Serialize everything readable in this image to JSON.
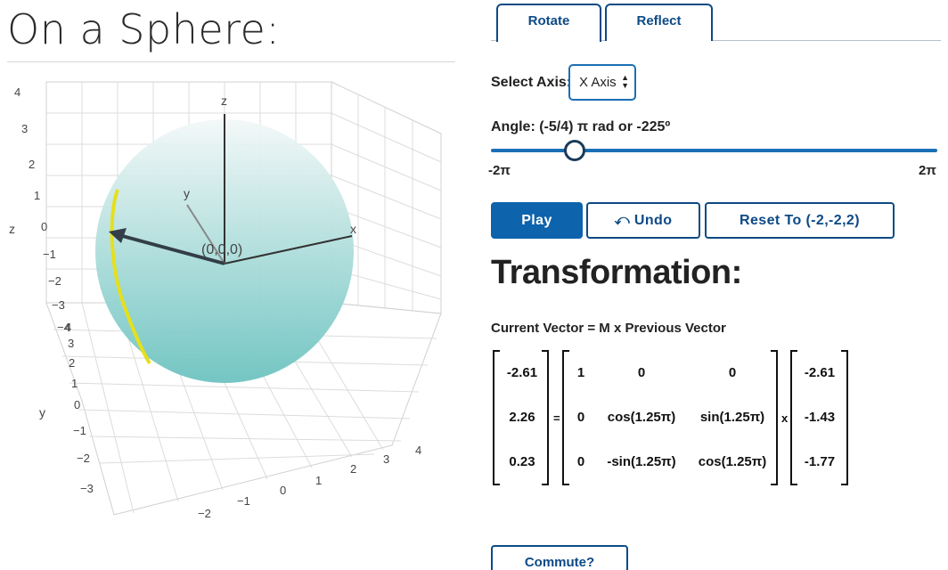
{
  "page": {
    "title": "On a Sphere:"
  },
  "plot": {
    "x_ticks": [
      "4",
      "3",
      "2",
      "1",
      "0",
      "−1",
      "−2"
    ],
    "y_ticks": [
      "4",
      "3",
      "2",
      "1",
      "0",
      "−1",
      "−2",
      "−3"
    ],
    "z_ticks": [
      "4",
      "3",
      "2",
      "1",
      "0",
      "−1",
      "−2",
      "−3",
      "−4"
    ],
    "axis_labels": {
      "x": "x",
      "y": "y",
      "z": "z"
    },
    "side_labels": {
      "z": "z",
      "y": "y"
    },
    "origin_label": "(0,0,0)",
    "colors": {
      "sphere": "#6cc3c0",
      "arc": "#e5e01d",
      "vector": "#333e48",
      "grid": "#d9d9d9"
    }
  },
  "tabs": [
    {
      "label": "Rotate",
      "active": true
    },
    {
      "label": "Reflect",
      "active": false
    }
  ],
  "controls": {
    "axis_label": "Select Axis:",
    "axis_value": "X Axis",
    "angle_label": "Angle:  (-5/4) π rad or  -225º",
    "slider_min": "-2π",
    "slider_max": "2π",
    "slider_fraction": 0.1875,
    "play": "Play",
    "undo": "⤺ Undo",
    "reset": "Reset To (-2,-2,2)",
    "commute": "Commute?"
  },
  "transformation": {
    "heading": "Transformation:",
    "formula": "Current Vector = M x Previous Vector",
    "equals": "=",
    "times": "x",
    "current_vector": [
      "-2.61",
      "2.26",
      "0.23"
    ],
    "matrix": [
      [
        "1",
        "0",
        "0"
      ],
      [
        "0",
        "cos(1.25π)",
        "sin(1.25π)"
      ],
      [
        "0",
        "-sin(1.25π)",
        "cos(1.25π)"
      ]
    ],
    "previous_vector": [
      "-2.61",
      "-1.43",
      "-1.77"
    ]
  }
}
